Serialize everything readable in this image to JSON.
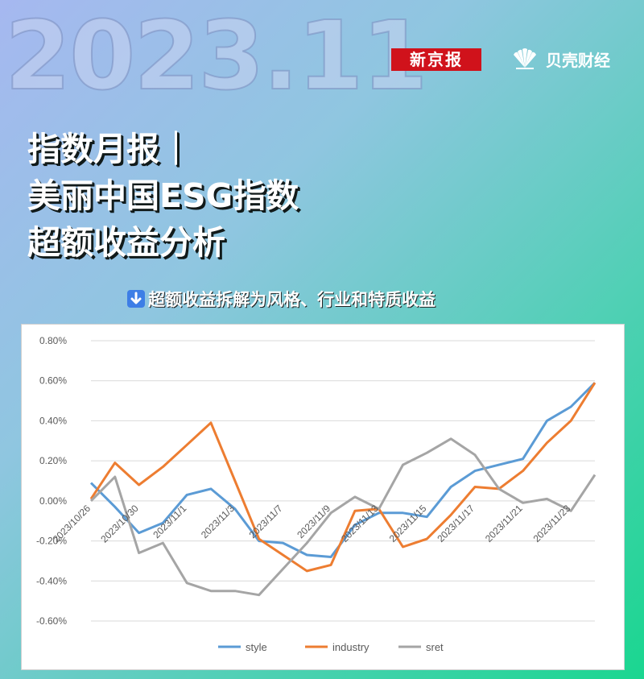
{
  "header": {
    "year_month": "2023.11",
    "logo_xjb": "新京报",
    "logo_beike": "贝壳财经"
  },
  "title_lines": [
    "指数月报｜",
    "美丽中国ESG指数",
    "超额收益分析"
  ],
  "subtitle": "超额收益拆解为风格、行业和特质收益",
  "colors": {
    "style": "#5b9bd5",
    "industry": "#ed7d31",
    "sret": "#a5a5a5",
    "accent_red": "#d0121b"
  },
  "chart_data": {
    "type": "line",
    "x": [
      "2023/10/26",
      "2023/10/27",
      "2023/10/30",
      "2023/10/31",
      "2023/11/1",
      "2023/11/2",
      "2023/11/3",
      "2023/11/6",
      "2023/11/7",
      "2023/11/8",
      "2023/11/9",
      "2023/11/10",
      "2023/11/13",
      "2023/11/14",
      "2023/11/15",
      "2023/11/16",
      "2023/11/17",
      "2023/11/20",
      "2023/11/21",
      "2023/11/22",
      "2023/11/23",
      "2023/11/24"
    ],
    "tick_labels": [
      "2023/10/26",
      "2023/10/30",
      "2023/11/1",
      "2023/11/3",
      "2023/11/7",
      "2023/11/9",
      "2023/11/13",
      "2023/11/15",
      "2023/11/17",
      "2023/11/21",
      "2023/11/23"
    ],
    "y_ticks": [
      "0.80%",
      "0.60%",
      "0.40%",
      "0.20%",
      "0.00%",
      "-0.20%",
      "-0.40%",
      "-0.60%"
    ],
    "ylim": [
      -0.6,
      0.8
    ],
    "grid": true,
    "legend_position": "bottom",
    "series": [
      {
        "name": "style",
        "values": [
          0.09,
          -0.03,
          -0.16,
          -0.11,
          0.03,
          0.06,
          -0.04,
          -0.2,
          -0.21,
          -0.27,
          -0.28,
          -0.12,
          -0.06,
          -0.06,
          -0.08,
          0.07,
          0.15,
          0.18,
          0.21,
          0.4,
          0.47,
          0.59
        ]
      },
      {
        "name": "industry",
        "values": [
          0.01,
          0.19,
          0.08,
          0.17,
          0.28,
          0.39,
          0.1,
          -0.19,
          -0.27,
          -0.35,
          -0.32,
          -0.05,
          -0.04,
          -0.23,
          -0.19,
          -0.07,
          0.07,
          0.06,
          0.15,
          0.29,
          0.4,
          0.59
        ]
      },
      {
        "name": "sret",
        "values": [
          0.0,
          0.12,
          -0.26,
          -0.21,
          -0.41,
          -0.45,
          -0.45,
          -0.47,
          -0.34,
          -0.21,
          -0.06,
          0.02,
          -0.04,
          0.18,
          0.24,
          0.31,
          0.23,
          0.06,
          -0.01,
          0.01,
          -0.05,
          0.13
        ]
      }
    ]
  }
}
